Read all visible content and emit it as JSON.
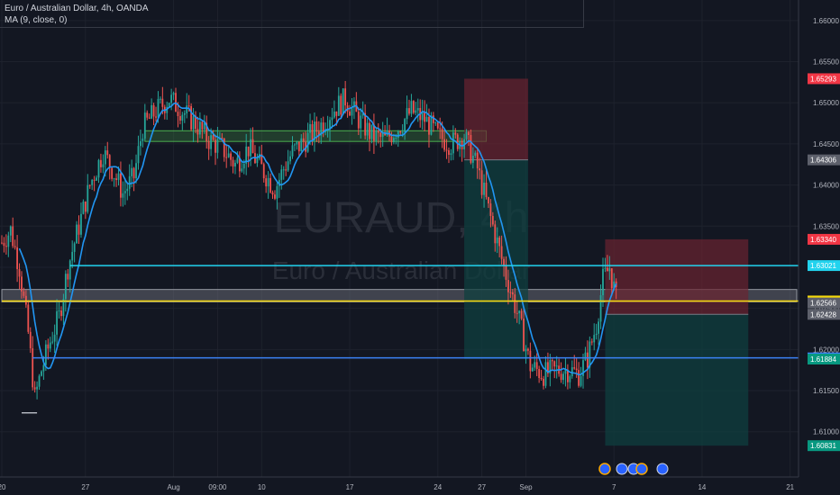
{
  "legend": {
    "symbol_line": "Euro / Australian Dollar, 4h, OANDA",
    "indicator_line": "MA (9, close, 0)"
  },
  "watermark": {
    "ticker": "EURAUD, 4h",
    "name": "Euro / Australian Dollar"
  },
  "colors": {
    "background": "#131722",
    "grid": "#1e222d",
    "up_candle": "#26a69a",
    "down_candle": "#ef5350",
    "ma_line": "#2196f3",
    "cyan_level": "#22d3ee",
    "blue_level": "#3b82f6",
    "yellow_level": "#f5d90a",
    "zone_fill": "#787b86",
    "resistance_zone": "#4caf50",
    "stop_zone": "#6b2330",
    "target_zone": "#0f3f3f"
  },
  "chart_data": {
    "type": "candlestick",
    "symbol": "EURAUD",
    "timeframe": "4h",
    "ylim": [
      1.6045,
      1.6625
    ],
    "y_ticks": [
      "1.66000",
      "1.65500",
      "1.65000",
      "1.64500",
      "1.64000",
      "1.63500",
      "1.63000",
      "1.62500",
      "1.62000",
      "1.61500",
      "1.61000"
    ],
    "y_tick_values": [
      1.66,
      1.655,
      1.65,
      1.645,
      1.64,
      1.635,
      1.63,
      1.625,
      1.62,
      1.615,
      1.61
    ],
    "x_labels": [
      "20",
      "27",
      "Aug",
      "09:00",
      "10",
      "17",
      "24",
      "27",
      "Sep",
      "7",
      "14",
      "21"
    ],
    "x_label_index": [
      0,
      38,
      78,
      98,
      118,
      158,
      198,
      218,
      238,
      278,
      318,
      358
    ],
    "total_bars": 362,
    "price_tags": [
      {
        "label": "1.65293",
        "value": 1.65293,
        "color": "#f23645"
      },
      {
        "label": "1.64306",
        "value": 1.64306,
        "color": "#5d606b"
      },
      {
        "label": "1.63340",
        "value": 1.6334,
        "color": "#f23645"
      },
      {
        "label": "1.63021",
        "value": 1.63021,
        "color": "#22d3ee"
      },
      {
        "label": "1.62590",
        "value": 1.6259,
        "color": "#f5d90a"
      },
      {
        "label": "1.62566",
        "value": 1.62566,
        "color": "#5d606b"
      },
      {
        "label": "1.62428",
        "value": 1.62428,
        "color": "#5d606b"
      },
      {
        "label": "1.61898",
        "value": 1.61898,
        "color": "#3b82f6"
      },
      {
        "label": "1.61884",
        "value": 1.61884,
        "color": "#089981"
      },
      {
        "label": "1.60831",
        "value": 1.60831,
        "color": "#089981"
      }
    ],
    "horizontal_levels": [
      {
        "name": "cyan-level",
        "value": 1.63021,
        "from_index": 31,
        "color": "#22d3ee"
      },
      {
        "name": "blue-level",
        "value": 1.61898,
        "from_index": 14,
        "color": "#3b82f6"
      },
      {
        "name": "yellow-level",
        "value": 1.6259,
        "from_index": 0,
        "color": "#f5d90a"
      }
    ],
    "zones": [
      {
        "name": "gray-zone",
        "top": 1.6273,
        "bottom": 1.6258,
        "from_index": 0,
        "to_index": 361
      },
      {
        "name": "resistance-zone",
        "top": 1.6466,
        "bottom": 1.6453,
        "from_index": 65,
        "to_index": 220
      }
    ],
    "positions": [
      {
        "name": "short-position-1",
        "from_index": 210,
        "to_index": 239,
        "stop": 1.65293,
        "entry": 1.64306,
        "target": 1.61884
      },
      {
        "name": "short-position-2",
        "from_index": 274,
        "to_index": 339,
        "stop": 1.6334,
        "entry": 1.62428,
        "target": 1.60831
      }
    ],
    "candles_ohlc_sample": [
      [
        1.634,
        1.6352,
        1.6318,
        1.633
      ],
      [
        1.629,
        1.63,
        1.62,
        1.6215
      ],
      [
        1.615,
        1.6175,
        1.6105,
        1.614
      ],
      [
        1.6195,
        1.624,
        1.6185,
        1.6232
      ],
      [
        1.633,
        1.638,
        1.632,
        1.6372
      ],
      [
        1.647,
        1.653,
        1.646,
        1.6505
      ],
      [
        1.6478,
        1.649,
        1.644,
        1.6452
      ],
      [
        1.637,
        1.6385,
        1.6355,
        1.6362
      ],
      [
        1.647,
        1.6535,
        1.646,
        1.6515
      ],
      [
        1.651,
        1.6542,
        1.649,
        1.65
      ],
      [
        1.6485,
        1.655,
        1.647,
        1.653
      ],
      [
        1.64,
        1.6405,
        1.63,
        1.631
      ],
      [
        1.621,
        1.622,
        1.616,
        1.6172
      ],
      [
        1.6165,
        1.618,
        1.614,
        1.6155
      ],
      [
        1.623,
        1.629,
        1.622,
        1.6285
      ],
      [
        1.63,
        1.632,
        1.625,
        1.6258
      ]
    ]
  }
}
